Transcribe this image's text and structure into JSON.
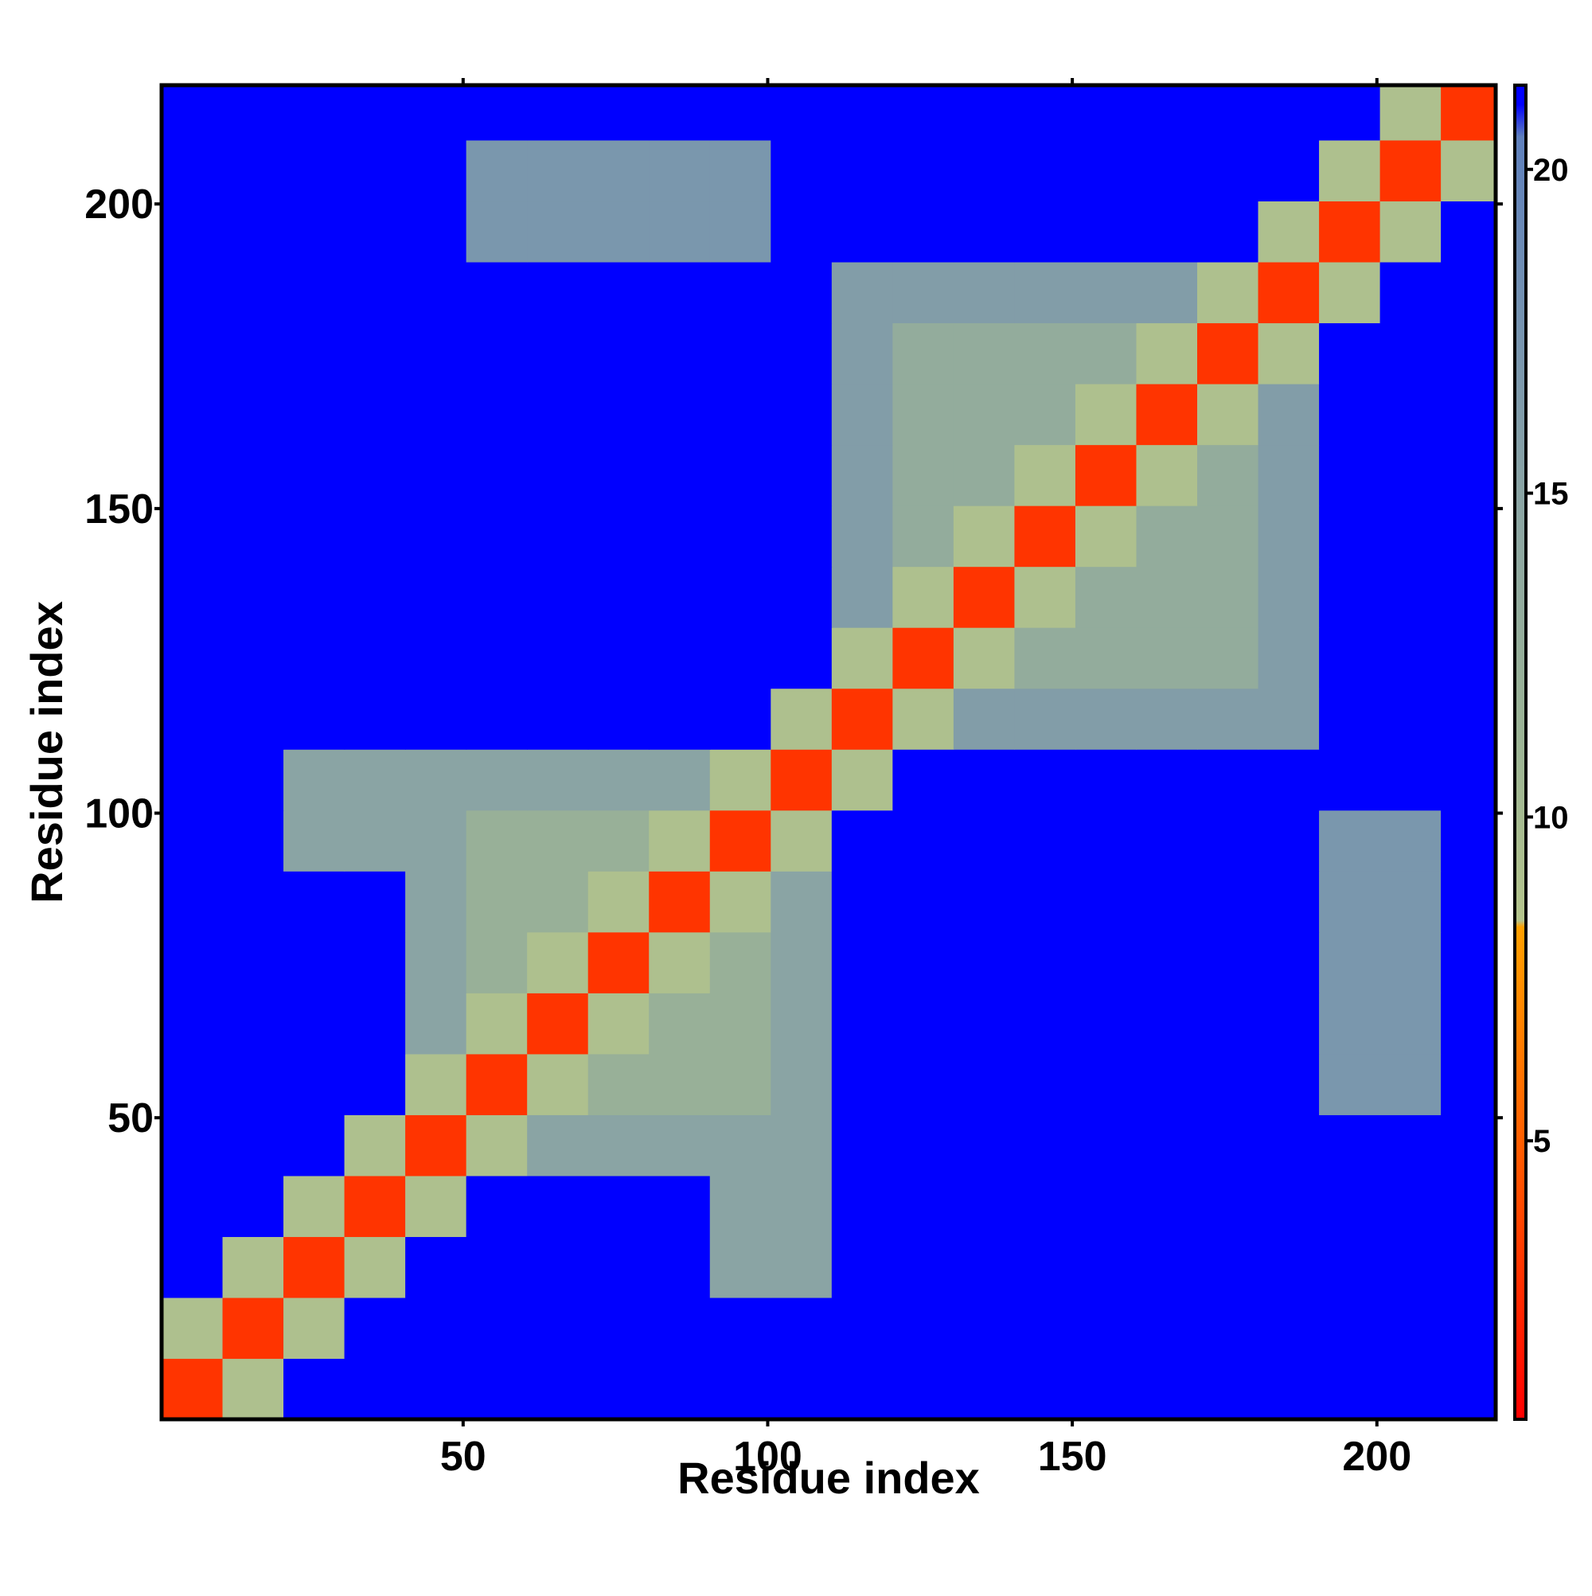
{
  "chart_data": {
    "type": "heatmap",
    "x_label": "Residue index",
    "y_label": "Residue index",
    "xbins": [
      0.5,
      10.5,
      20.5,
      30.5,
      40.5,
      50.5,
      60.5,
      70.5,
      80.5,
      90.5,
      100.5,
      110.5,
      120.5,
      130.5,
      140.5,
      150.5,
      160.5,
      170.5,
      180.5,
      190.5,
      200.5,
      210.5,
      220.5
    ],
    "ybins": [
      0.5,
      10.5,
      20.5,
      30.5,
      40.5,
      50.5,
      60.5,
      70.5,
      80.5,
      90.5,
      100.5,
      110.5,
      120.5,
      130.5,
      140.5,
      150.5,
      160.5,
      170.5,
      180.5,
      190.5,
      200.5,
      210.5,
      220.5
    ],
    "xlim": [
      0.5,
      219.5
    ],
    "ylim": [
      0.5,
      219.5
    ],
    "xticks": [
      50,
      100,
      150,
      200
    ],
    "yticks": [
      50,
      100,
      150,
      200
    ],
    "clim": [
      0.7,
      21.3
    ],
    "cticks": [
      5,
      10,
      15,
      20
    ],
    "colorscale": [
      {
        "value": 0.7,
        "color": "#ff0000"
      },
      {
        "value": 4,
        "color": "#ff4a00"
      },
      {
        "value": 8.3,
        "color": "#ffa000"
      },
      {
        "value": 8.4,
        "color": "#b4c48c"
      },
      {
        "value": 11,
        "color": "#9cb494"
      },
      {
        "value": 15,
        "color": "#8aa4a4"
      },
      {
        "value": 20.5,
        "color": "#5f80bc"
      },
      {
        "value": 21,
        "color": "#0000ff"
      },
      {
        "value": 21.3,
        "color": "#0000ff"
      }
    ],
    "values": [
      [
        3,
        9,
        21,
        21,
        21,
        21,
        21,
        21,
        21,
        21,
        21,
        21,
        21,
        21,
        21,
        21,
        21,
        21,
        21,
        21,
        21,
        21
      ],
      [
        9,
        3,
        9,
        21,
        21,
        21,
        21,
        21,
        21,
        21,
        21,
        21,
        21,
        21,
        21,
        21,
        21,
        21,
        21,
        21,
        21,
        21
      ],
      [
        21,
        9,
        3,
        9,
        21,
        21,
        21,
        21,
        21,
        15,
        15,
        21,
        21,
        21,
        21,
        21,
        21,
        21,
        21,
        21,
        21,
        21
      ],
      [
        21,
        21,
        9,
        3,
        9,
        21,
        21,
        21,
        21,
        15,
        15,
        21,
        21,
        21,
        21,
        21,
        21,
        21,
        21,
        21,
        21,
        21
      ],
      [
        21,
        21,
        21,
        9,
        3,
        9,
        15,
        15,
        15,
        15,
        15,
        21,
        21,
        21,
        21,
        21,
        21,
        21,
        21,
        21,
        21,
        21
      ],
      [
        21,
        21,
        21,
        21,
        9,
        3,
        9,
        12,
        12,
        12,
        15,
        21,
        21,
        21,
        21,
        21,
        21,
        21,
        21,
        17,
        17,
        21
      ],
      [
        21,
        21,
        21,
        21,
        15,
        9,
        3,
        9,
        12,
        12,
        15,
        21,
        21,
        21,
        21,
        21,
        21,
        21,
        21,
        17,
        17,
        21
      ],
      [
        21,
        21,
        21,
        21,
        15,
        12,
        9,
        3,
        9,
        12,
        15,
        21,
        21,
        21,
        21,
        21,
        21,
        21,
        21,
        17,
        17,
        21
      ],
      [
        21,
        21,
        21,
        21,
        15,
        12,
        12,
        9,
        3,
        9,
        15,
        21,
        21,
        21,
        21,
        21,
        21,
        21,
        21,
        17,
        17,
        21
      ],
      [
        21,
        21,
        15,
        15,
        15,
        12,
        12,
        12,
        9,
        3,
        9,
        21,
        21,
        21,
        21,
        21,
        21,
        21,
        21,
        17,
        17,
        21
      ],
      [
        21,
        21,
        15,
        15,
        15,
        15,
        15,
        15,
        15,
        9,
        3,
        9,
        21,
        21,
        21,
        21,
        21,
        21,
        21,
        21,
        21,
        21
      ],
      [
        21,
        21,
        21,
        21,
        21,
        21,
        21,
        21,
        21,
        21,
        9,
        3,
        9,
        16,
        16,
        16,
        16,
        16,
        16,
        21,
        21,
        21
      ],
      [
        21,
        21,
        21,
        21,
        21,
        21,
        21,
        21,
        21,
        21,
        21,
        9,
        3,
        9,
        13,
        13,
        13,
        13,
        16,
        21,
        21,
        21
      ],
      [
        21,
        21,
        21,
        21,
        21,
        21,
        21,
        21,
        21,
        21,
        21,
        16,
        9,
        3,
        9,
        13,
        13,
        13,
        16,
        21,
        21,
        21
      ],
      [
        21,
        21,
        21,
        21,
        21,
        21,
        21,
        21,
        21,
        21,
        21,
        16,
        13,
        9,
        3,
        9,
        13,
        13,
        16,
        21,
        21,
        21
      ],
      [
        21,
        21,
        21,
        21,
        21,
        21,
        21,
        21,
        21,
        21,
        21,
        16,
        13,
        13,
        9,
        3,
        9,
        13,
        16,
        21,
        21,
        21
      ],
      [
        21,
        21,
        21,
        21,
        21,
        21,
        21,
        21,
        21,
        21,
        21,
        16,
        13,
        13,
        13,
        9,
        3,
        9,
        16,
        21,
        21,
        21
      ],
      [
        21,
        21,
        21,
        21,
        21,
        21,
        21,
        21,
        21,
        21,
        21,
        16,
        13,
        13,
        13,
        13,
        9,
        3,
        9,
        21,
        21,
        21
      ],
      [
        21,
        21,
        21,
        21,
        21,
        21,
        21,
        21,
        21,
        21,
        21,
        16,
        16,
        16,
        16,
        16,
        16,
        9,
        3,
        9,
        21,
        21
      ],
      [
        21,
        21,
        21,
        21,
        21,
        17,
        17,
        17,
        17,
        17,
        21,
        21,
        21,
        21,
        21,
        21,
        21,
        21,
        9,
        3,
        9,
        21
      ],
      [
        21,
        21,
        21,
        21,
        21,
        17,
        17,
        17,
        17,
        17,
        21,
        21,
        21,
        21,
        21,
        21,
        21,
        21,
        21,
        9,
        3,
        9
      ],
      [
        21,
        21,
        21,
        21,
        21,
        21,
        21,
        21,
        21,
        21,
        21,
        21,
        21,
        21,
        21,
        21,
        21,
        21,
        21,
        21,
        9,
        3
      ]
    ]
  }
}
